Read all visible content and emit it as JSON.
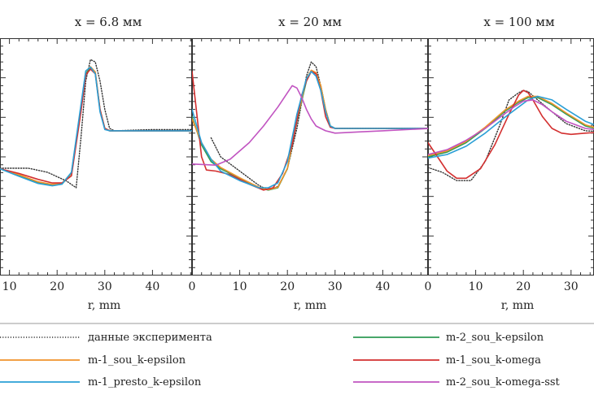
{
  "chart_data": {
    "type": "line",
    "xlabel": "r, mm",
    "grid": false,
    "legend": {
      "placement": "bottom",
      "entries": [
        {
          "label": "данные эксперимента",
          "color": "#333333",
          "style": "dotted"
        },
        {
          "label": "m-2_sou_k-epsilon",
          "color": "#2e9a55",
          "style": "solid"
        },
        {
          "label": "m-1_sou_k-epsilon",
          "color": "#f0932b",
          "style": "solid"
        },
        {
          "label": "m-1_sou_k-omega",
          "color": "#d32f2f",
          "style": "solid"
        },
        {
          "label": "m-1_presto_k-epsilon",
          "color": "#2a9fd6",
          "style": "solid"
        },
        {
          "label": "m-2_sou_k-omega-sst",
          "color": "#c154c1",
          "style": "solid"
        }
      ]
    },
    "panels": [
      {
        "title": "x = 6.8 мм",
        "xlim": [
          8,
          50
        ],
        "ylim": [
          0,
          1
        ],
        "xticks": [
          "10",
          "20",
          "30",
          "40"
        ],
        "xtick_values": [
          10,
          20,
          30,
          40
        ],
        "series": [
          {
            "name": "данные эксперимента",
            "x": [
              8,
              14,
              18,
              22,
              24,
              25,
              26,
              27,
              28,
              29,
              30,
              31,
              32,
              40,
              50
            ],
            "y": [
              0.452,
              0.452,
              0.435,
              0.398,
              0.37,
              0.58,
              0.82,
              0.91,
              0.9,
              0.82,
              0.7,
              0.62,
              0.61,
              0.615,
              0.615
            ]
          },
          {
            "name": "m-2_sou_k-epsilon",
            "x": [
              8,
              12,
              16,
              19,
              21,
              23,
              25,
              26,
              27,
              28,
              29,
              30,
              31,
              40,
              50
            ],
            "y": [
              0.45,
              0.42,
              0.392,
              0.38,
              0.385,
              0.43,
              0.7,
              0.85,
              0.875,
              0.855,
              0.7,
              0.62,
              0.61,
              0.61,
              0.61
            ]
          },
          {
            "name": "m-1_sou_k-epsilon",
            "x": [
              8,
              12,
              16,
              19,
              21,
              23,
              25,
              26,
              27,
              28,
              29,
              30,
              31,
              40,
              50
            ],
            "y": [
              0.45,
              0.425,
              0.395,
              0.384,
              0.388,
              0.432,
              0.71,
              0.86,
              0.88,
              0.858,
              0.7,
              0.62,
              0.61,
              0.61,
              0.61
            ]
          },
          {
            "name": "m-1_sou_k-omega",
            "x": [
              8,
              12,
              16,
              19,
              21,
              23,
              25,
              26,
              27,
              28,
              29,
              30,
              31,
              40,
              50
            ],
            "y": [
              0.45,
              0.43,
              0.405,
              0.39,
              0.39,
              0.42,
              0.69,
              0.845,
              0.87,
              0.85,
              0.7,
              0.62,
              0.61,
              0.61,
              0.61
            ]
          },
          {
            "name": "m-1_presto_k-epsilon",
            "x": [
              8,
              12,
              16,
              19,
              21,
              23,
              25,
              26,
              27,
              28,
              29,
              30,
              31,
              40,
              50
            ],
            "y": [
              0.45,
              0.418,
              0.388,
              0.378,
              0.385,
              0.435,
              0.72,
              0.862,
              0.878,
              0.85,
              0.69,
              0.615,
              0.61,
              0.61,
              0.61
            ]
          }
        ]
      },
      {
        "title": "x = 20 мм",
        "xlim": [
          0,
          50
        ],
        "ylim": [
          0,
          1
        ],
        "xticks": [
          "0",
          "10",
          "20",
          "30",
          "40"
        ],
        "xtick_values": [
          0,
          10,
          20,
          30,
          40
        ],
        "series": [
          {
            "name": "данные эксперимента",
            "x": [
              4,
              6,
              10,
              14,
              16,
              18,
              20,
              22,
              24,
              25,
              26,
              27,
              28,
              29,
              30,
              35,
              40,
              50
            ],
            "y": [
              0.58,
              0.5,
              0.44,
              0.38,
              0.36,
              0.375,
              0.45,
              0.62,
              0.84,
              0.9,
              0.88,
              0.8,
              0.7,
              0.63,
              0.62,
              0.62,
              0.62,
              0.62
            ]
          },
          {
            "name": "m-2_sou_k-epsilon",
            "x": [
              0,
              2,
              4,
              6,
              10,
              14,
              16,
              18,
              20,
              22,
              24,
              25,
              26,
              27,
              28,
              29,
              30,
              35,
              40,
              50
            ],
            "y": [
              0.67,
              0.55,
              0.48,
              0.45,
              0.41,
              0.37,
              0.36,
              0.37,
              0.45,
              0.65,
              0.82,
              0.86,
              0.85,
              0.8,
              0.7,
              0.63,
              0.62,
              0.62,
              0.62,
              0.62
            ]
          },
          {
            "name": "m-1_sou_k-epsilon",
            "x": [
              0,
              2,
              4,
              6,
              10,
              14,
              16,
              18,
              20,
              22,
              24,
              25,
              26,
              27,
              28,
              29,
              30,
              35,
              40,
              50
            ],
            "y": [
              0.66,
              0.56,
              0.49,
              0.455,
              0.412,
              0.372,
              0.362,
              0.372,
              0.452,
              0.655,
              0.83,
              0.865,
              0.855,
              0.8,
              0.7,
              0.63,
              0.62,
              0.62,
              0.62,
              0.62
            ]
          },
          {
            "name": "m-1_sou_k-omega",
            "x": [
              0,
              1,
              2,
              3,
              5,
              8,
              12,
              15,
              17,
              19,
              21,
              23,
              24,
              25,
              26,
              27,
              28,
              29,
              30,
              35,
              40,
              50
            ],
            "y": [
              0.86,
              0.68,
              0.5,
              0.445,
              0.44,
              0.425,
              0.385,
              0.36,
              0.37,
              0.43,
              0.55,
              0.76,
              0.82,
              0.86,
              0.85,
              0.78,
              0.67,
              0.625,
              0.62,
              0.62,
              0.62,
              0.62
            ]
          },
          {
            "name": "m-1_presto_k-epsilon",
            "x": [
              0,
              2,
              4,
              6,
              10,
              14,
              16,
              18,
              20,
              22,
              24,
              25,
              26,
              27,
              28,
              29,
              30,
              35,
              40,
              50
            ],
            "y": [
              0.7,
              0.56,
              0.49,
              0.44,
              0.4,
              0.37,
              0.37,
              0.39,
              0.48,
              0.68,
              0.83,
              0.86,
              0.84,
              0.78,
              0.69,
              0.63,
              0.62,
              0.62,
              0.62,
              0.62
            ]
          },
          {
            "name": "m-2_sou_k-omega-sst",
            "x": [
              0,
              5,
              8,
              12,
              15,
              18,
              20,
              21,
              22,
              23,
              24,
              25,
              26,
              27,
              28,
              29,
              30,
              35,
              40,
              50
            ],
            "y": [
              0.47,
              0.465,
              0.49,
              0.56,
              0.63,
              0.71,
              0.77,
              0.8,
              0.79,
              0.75,
              0.7,
              0.66,
              0.63,
              0.62,
              0.61,
              0.605,
              0.6,
              0.605,
              0.61,
              0.62
            ]
          }
        ]
      },
      {
        "title": "x = 100 мм",
        "xlim": [
          0,
          40
        ],
        "ylim": [
          0,
          1
        ],
        "xticks": [
          "0",
          "10",
          "20",
          "30"
        ],
        "xtick_values": [
          0,
          10,
          20,
          30
        ],
        "series": [
          {
            "name": "данные эксперимента",
            "x": [
              0,
              3,
              6,
              9,
              12,
              15,
              17,
              19,
              20,
              21,
              23,
              26,
              29,
              33,
              37,
              40
            ],
            "y": [
              0.455,
              0.435,
              0.4,
              0.4,
              0.48,
              0.63,
              0.74,
              0.77,
              0.78,
              0.775,
              0.74,
              0.69,
              0.64,
              0.61,
              0.605,
              0.6
            ]
          },
          {
            "name": "m-2_sou_k-epsilon",
            "x": [
              0,
              4,
              8,
              12,
              16,
              19,
              21,
              23,
              26,
              29,
              33,
              37,
              40
            ],
            "y": [
              0.5,
              0.52,
              0.56,
              0.62,
              0.69,
              0.73,
              0.75,
              0.75,
              0.72,
              0.68,
              0.63,
              0.61,
              0.6
            ]
          },
          {
            "name": "m-1_sou_k-epsilon",
            "x": [
              0,
              4,
              8,
              12,
              16,
              19,
              21,
              23,
              26,
              29,
              33,
              37,
              40
            ],
            "y": [
              0.505,
              0.525,
              0.565,
              0.625,
              0.695,
              0.735,
              0.755,
              0.755,
              0.725,
              0.685,
              0.635,
              0.612,
              0.6
            ]
          },
          {
            "name": "m-1_sou_k-omega",
            "x": [
              0,
              2,
              4,
              6,
              8,
              11,
              14,
              17,
              19,
              20,
              21,
              22,
              24,
              26,
              28,
              30,
              33,
              37,
              40
            ],
            "y": [
              0.56,
              0.5,
              0.44,
              0.41,
              0.41,
              0.45,
              0.55,
              0.68,
              0.76,
              0.78,
              0.77,
              0.74,
              0.67,
              0.62,
              0.6,
              0.595,
              0.6,
              0.605,
              0.6
            ]
          },
          {
            "name": "m-1_presto_k-epsilon",
            "x": [
              0,
              4,
              8,
              12,
              16,
              19,
              21,
              23,
              26,
              29,
              33,
              37,
              40
            ],
            "y": [
              0.495,
              0.51,
              0.545,
              0.6,
              0.665,
              0.71,
              0.74,
              0.755,
              0.74,
              0.7,
              0.65,
              0.62,
              0.61
            ]
          },
          {
            "name": "m-2_sou_k-omega-sst",
            "x": [
              0,
              4,
              8,
              12,
              16,
              18,
              20,
              22,
              24,
              26,
              29,
              33,
              37,
              40
            ],
            "y": [
              0.51,
              0.53,
              0.57,
              0.62,
              0.68,
              0.71,
              0.735,
              0.74,
              0.72,
              0.69,
              0.65,
              0.62,
              0.61,
              0.6
            ]
          }
        ]
      }
    ]
  }
}
